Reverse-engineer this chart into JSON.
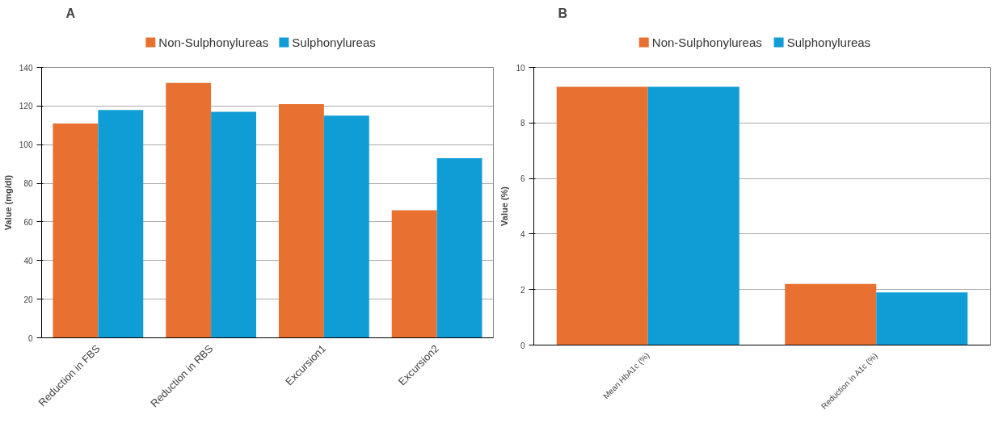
{
  "chart_data": [
    {
      "type": "bar",
      "title": "A",
      "ylabel": "Value (mg/dl)",
      "categories": [
        "Reduction in FBS",
        "Reduction in RBS",
        "Excursion1",
        "Excursion2"
      ],
      "series": [
        {
          "name": "Non-Sulphonylureas",
          "color": "#e87131",
          "values": [
            111,
            132,
            121,
            66
          ]
        },
        {
          "name": "Sulphonylureas",
          "color": "#109dd6",
          "values": [
            118,
            117,
            115,
            93
          ]
        }
      ],
      "ylim": [
        0,
        140
      ],
      "yticks": [
        0,
        20,
        40,
        60,
        80,
        100,
        120,
        140
      ],
      "grid": "y",
      "legend": "top"
    },
    {
      "type": "bar",
      "title": "B",
      "ylabel": "Value (%)",
      "categories": [
        "Mean HbA1c (%)",
        "Reduction in A1c (%)"
      ],
      "series": [
        {
          "name": "Non-Sulphonylureas",
          "color": "#e87131",
          "values": [
            9.3,
            2.2
          ]
        },
        {
          "name": "Sulphonylureas",
          "color": "#109dd6",
          "values": [
            9.3,
            1.9
          ]
        }
      ],
      "ylim": [
        0,
        10
      ],
      "yticks": [
        0,
        2,
        4,
        6,
        8,
        10
      ],
      "grid": "y",
      "legend": "top"
    }
  ]
}
